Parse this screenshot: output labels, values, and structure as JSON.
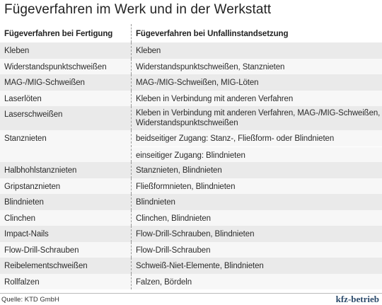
{
  "title": "Fügeverfahren im Werk und in der Werkstatt",
  "columns": [
    "Fügeverfahren bei Fertigung",
    "Fügeverfahren bei Unfallinstandsetzung"
  ],
  "rows": [
    {
      "left": "Kleben",
      "right": [
        "Kleben"
      ]
    },
    {
      "left": "Widerstandspunktschweißen",
      "right": [
        "Widerstandspunktschweißen, Stanznieten"
      ]
    },
    {
      "left": "MAG-/MIG-Schweißen",
      "right": [
        "MAG-/MIG-Schweißen, MIG-Löten"
      ]
    },
    {
      "left": "Laserlöten",
      "right": [
        "Kleben in Verbindung mit anderen Verfahren"
      ]
    },
    {
      "left": "Laserschweißen",
      "right": [
        "Kleben in Verbindung mit anderen Verfahren, MAG-/MIG-Schweißen, Widerstandspunktschweißen"
      ]
    },
    {
      "left": "Stanznieten",
      "right": [
        "beidseitiger Zugang: Stanz-, Fließform- oder Blindnieten",
        "einseitiger Zugang: Blindnieten"
      ]
    },
    {
      "left": "Halbhohlstanznieten",
      "right": [
        "Stanznieten, Blindnieten"
      ]
    },
    {
      "left": "Gripstanznieten",
      "right": [
        "Fließformnieten, Blindnieten"
      ]
    },
    {
      "left": "Blindnieten",
      "right": [
        "Blindnieten"
      ]
    },
    {
      "left": "Clinchen",
      "right": [
        "Clinchen, Blindnieten"
      ]
    },
    {
      "left": "Impact-Nails",
      "right": [
        "Flow-Drill-Schrauben, Blindnieten"
      ]
    },
    {
      "left": "Flow-Drill-Schrauben",
      "right": [
        "Flow-Drill-Schrauben"
      ]
    },
    {
      "left": "Reibelementschweißen",
      "right": [
        "Schweiß-Niet-Elemente, Blindnieten"
      ]
    },
    {
      "left": "Rollfalzen",
      "right": [
        "Falzen, Bördeln"
      ]
    }
  ],
  "source": "Quelle: KTD GmbH",
  "brand": "kfz-betrieb"
}
